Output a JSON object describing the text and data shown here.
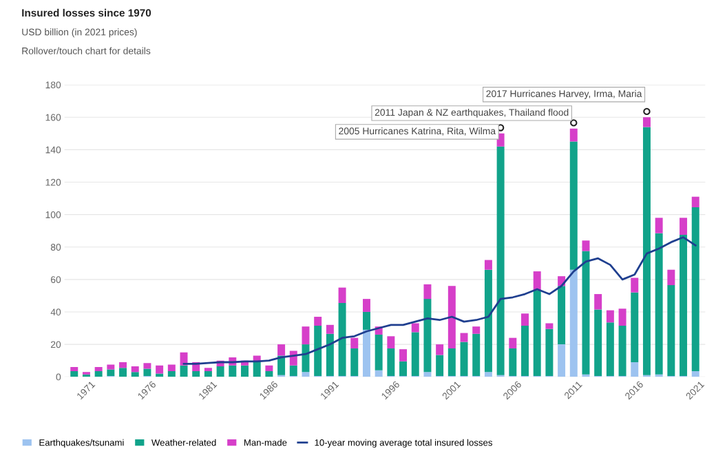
{
  "chart_data": {
    "type": "bar",
    "stacked": true,
    "title": "Insured losses since 1970",
    "subtitle": "USD billion (in 2021 prices)",
    "x": [
      1970,
      1971,
      1972,
      1973,
      1974,
      1975,
      1976,
      1977,
      1978,
      1979,
      1980,
      1981,
      1982,
      1983,
      1984,
      1985,
      1986,
      1987,
      1988,
      1989,
      1990,
      1991,
      1992,
      1993,
      1994,
      1995,
      1996,
      1997,
      1998,
      1999,
      2000,
      2001,
      2002,
      2003,
      2004,
      2005,
      2006,
      2007,
      2008,
      2009,
      2010,
      2011,
      2012,
      2013,
      2014,
      2015,
      2016,
      2017,
      2018,
      2019,
      2020,
      2021
    ],
    "xlim": [
      1969.2,
      2021.8
    ],
    "xticks": [
      1971,
      1976,
      1981,
      1986,
      1991,
      1996,
      2001,
      2006,
      2011,
      2016,
      2021
    ],
    "ylim": [
      0,
      180
    ],
    "yticks": [
      0,
      20,
      40,
      60,
      80,
      100,
      120,
      140,
      160,
      180
    ],
    "grid": "y",
    "legend": "bottom",
    "series": [
      {
        "name": "Earthquakes/tsunami",
        "color": "#9dc3f0",
        "values": [
          0,
          0,
          0,
          0.5,
          0,
          0,
          0.5,
          0,
          0,
          0,
          0,
          0,
          0,
          0,
          0,
          0,
          0,
          1,
          0.5,
          3,
          0.5,
          0.5,
          0.5,
          0.5,
          29,
          4,
          0.5,
          0.5,
          0.5,
          3,
          0.5,
          0.5,
          0.5,
          0.5,
          3,
          1,
          0.5,
          0.5,
          0.5,
          0.5,
          20,
          66,
          1.5,
          0.5,
          0.5,
          0.5,
          9,
          1,
          1.5,
          0.5,
          0.5,
          3.5
        ]
      },
      {
        "name": "Weather-related",
        "color": "#11a38a",
        "values": [
          3.5,
          1.5,
          3.5,
          4,
          5.5,
          3,
          4.5,
          2,
          3.5,
          7,
          3.5,
          3.5,
          6.5,
          7,
          7,
          9,
          3.5,
          12,
          6.5,
          17,
          31,
          26,
          45,
          17,
          11,
          22,
          17,
          9,
          27,
          45,
          13,
          17,
          21,
          26,
          63,
          141,
          17,
          31,
          53,
          29,
          36,
          79,
          76,
          41,
          33,
          31,
          43,
          153,
          87,
          56,
          87,
          101
        ]
      },
      {
        "name": "Man-made",
        "color": "#d63fc9",
        "values": [
          2.5,
          1.5,
          2.5,
          3,
          3.5,
          3.5,
          3.5,
          5,
          4,
          8,
          5.5,
          2,
          3.5,
          5,
          3,
          4,
          3.5,
          7,
          9,
          11,
          5.5,
          5.5,
          9.5,
          6.5,
          8,
          5,
          7.5,
          7.5,
          5.5,
          9,
          6.5,
          38.5,
          5.5,
          4.5,
          6,
          8,
          6.5,
          7.5,
          11.5,
          3.5,
          6,
          8,
          6.5,
          9.5,
          7.5,
          10.5,
          9,
          6,
          9.5,
          9.5,
          10.5,
          6.5
        ]
      },
      {
        "name": "10-year moving average total insured losses",
        "type": "line",
        "color": "#1f3f8f",
        "marker": "none",
        "line_style": "solid",
        "x": [
          1979,
          1980,
          1981,
          1982,
          1983,
          1984,
          1985,
          1986,
          1987,
          1988,
          1989,
          1990,
          1991,
          1992,
          1993,
          1994,
          1995,
          1996,
          1997,
          1998,
          1999,
          2000,
          2001,
          2002,
          2003,
          2004,
          2005,
          2006,
          2007,
          2008,
          2009,
          2010,
          2011,
          2012,
          2013,
          2014,
          2015,
          2016,
          2017,
          2018,
          2019,
          2020,
          2021
        ],
        "values": [
          8,
          8,
          8.5,
          9,
          9,
          9.5,
          9.5,
          10,
          12,
          13,
          14,
          17,
          20,
          24,
          25,
          28,
          30,
          32,
          32,
          34,
          36,
          35,
          37,
          34,
          35,
          37,
          48,
          49,
          51,
          54,
          51,
          56,
          65,
          71,
          73,
          69,
          60,
          63,
          76,
          79,
          83,
          86,
          81
        ]
      }
    ],
    "annotations": [
      "Rollover/touch chart for details",
      {
        "text": "2005 Hurricanes Katrina, Rita, Wilma",
        "x": 2005,
        "y": 150
      },
      {
        "text": "2011 Japan & NZ earthquakes, Thailand flood",
        "x": 2011,
        "y": 153
      },
      {
        "text": "2017 Hurricanes Harvey, Irma, Maria",
        "x": 2017,
        "y": 160
      }
    ]
  }
}
